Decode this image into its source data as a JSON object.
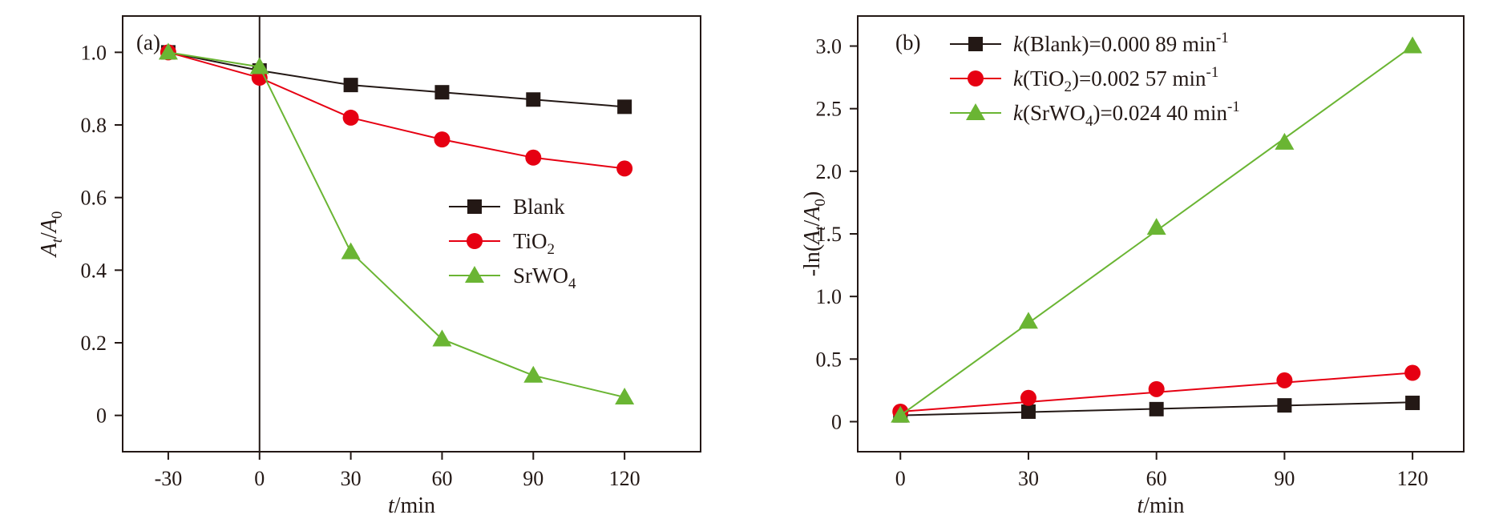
{
  "chart_data": [
    {
      "type": "line",
      "panel_label": "(a)",
      "x": [
        -30,
        0,
        30,
        60,
        90,
        120
      ],
      "xlim": [
        -45,
        145
      ],
      "ylim": [
        -0.1,
        1.1
      ],
      "x_ticks": [
        -30,
        0,
        30,
        60,
        90,
        120
      ],
      "x_tick_labels": [
        "-30",
        "0",
        "30",
        "60",
        "90",
        "120"
      ],
      "y_ticks": [
        0,
        0.2,
        0.4,
        0.6,
        0.8,
        1.0
      ],
      "y_tick_labels": [
        "0",
        "0.2",
        "0.4",
        "0.6",
        "0.8",
        "1.0"
      ],
      "xlabel": {
        "italic": "t",
        "rest": "/min"
      },
      "ylabel": {
        "a": "A",
        "sub_t": "t",
        "slash": "/",
        "b": "A",
        "sub_0": "0"
      },
      "vertical_line_at_x": 0,
      "grid": false,
      "legend_position": "center-right",
      "series": [
        {
          "name": "Blank",
          "legend": {
            "text": "Blank",
            "sub": ""
          },
          "marker": "square",
          "color": "#231815",
          "values": [
            1.0,
            0.95,
            0.91,
            0.89,
            0.87,
            0.85
          ]
        },
        {
          "name": "TiO2",
          "legend": {
            "text": "TiO",
            "sub": "2"
          },
          "marker": "circle",
          "color": "#e60012",
          "values": [
            1.0,
            0.93,
            0.82,
            0.76,
            0.71,
            0.68
          ]
        },
        {
          "name": "SrWO4",
          "legend": {
            "text": "SrWO",
            "sub": "4"
          },
          "marker": "triangle",
          "color": "#6ab533",
          "values": [
            1.0,
            0.96,
            0.45,
            0.21,
            0.11,
            0.05
          ]
        }
      ]
    },
    {
      "type": "line",
      "panel_label": "(b)",
      "x": [
        0,
        30,
        60,
        90,
        120
      ],
      "xlim": [
        -10,
        132
      ],
      "ylim": [
        -0.24,
        3.24
      ],
      "x_ticks": [
        0,
        30,
        60,
        90,
        120
      ],
      "x_tick_labels": [
        "0",
        "30",
        "60",
        "90",
        "120"
      ],
      "y_ticks": [
        0,
        0.5,
        1.0,
        1.5,
        2.0,
        2.5,
        3.0
      ],
      "y_tick_labels": [
        "0",
        "0.5",
        "1.0",
        "1.5",
        "2.0",
        "2.5",
        "3.0"
      ],
      "xlabel": {
        "italic": "t",
        "rest": "/min"
      },
      "ylabel": {
        "pre": "-ln(",
        "a": "A",
        "sub_t": "t",
        "slash": "/",
        "b": "A",
        "sub_0": "0",
        "post": ")"
      },
      "grid": false,
      "legend_position": "top-left",
      "series": [
        {
          "name": "k(Blank)",
          "legend": {
            "k": "k",
            "open": "(Blank",
            "sub": "",
            "value": ")=0.000 89 min",
            "sup": "-1"
          },
          "marker": "square",
          "color": "#231815",
          "values": [
            0.05,
            0.08,
            0.1,
            0.13,
            0.15
          ],
          "fit_line": [
            0.05,
            0.155
          ]
        },
        {
          "name": "k(TiO2)",
          "legend": {
            "k": "k",
            "open": "(TiO",
            "sub": "2",
            "value": ")=0.002 57 min",
            "sup": "-1"
          },
          "marker": "circle",
          "color": "#e60012",
          "values": [
            0.08,
            0.19,
            0.26,
            0.33,
            0.39
          ],
          "fit_line": [
            0.08,
            0.39
          ]
        },
        {
          "name": "k(SrWO4)",
          "legend": {
            "k": "k",
            "open": "(SrWO",
            "sub": "4",
            "value": ")=0.024 40 min",
            "sup": "-1"
          },
          "marker": "triangle",
          "color": "#6ab533",
          "values": [
            0.05,
            0.8,
            1.55,
            2.23,
            3.0
          ],
          "fit_line": [
            0.05,
            3.0
          ]
        }
      ]
    }
  ]
}
